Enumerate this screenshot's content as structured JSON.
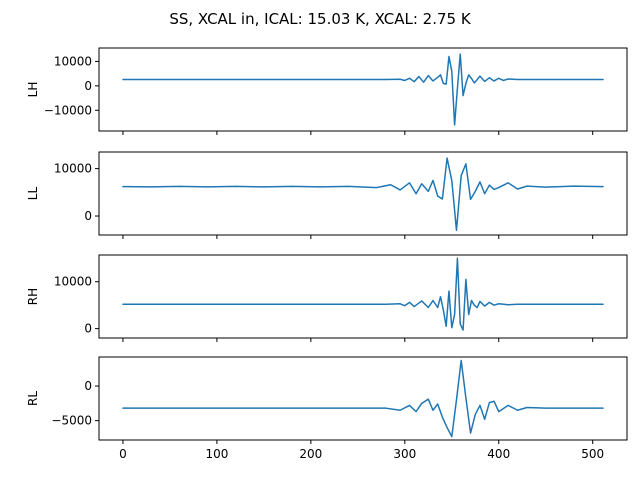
{
  "title": "SS, XCAL in, ICAL: 15.03 K, XCAL: 2.75 K",
  "colors": {
    "line": "#1f77b4",
    "frame": "#000000",
    "background": "#ffffff"
  },
  "chart_data": [
    {
      "type": "line",
      "ylabel": "LH",
      "xlim": [
        -25.5,
        536.5
      ],
      "ylim": [
        -18500,
        15500
      ],
      "yticks": [
        -10000,
        0,
        10000
      ],
      "ytick_labels": [
        "−10000",
        "0",
        "10000"
      ],
      "xticks": [
        0,
        100,
        200,
        300,
        400,
        500
      ],
      "xtick_labels": [
        "",
        "",
        "",
        "",
        "",
        ""
      ],
      "grid": false,
      "x": [
        0,
        50,
        100,
        150,
        200,
        250,
        280,
        295,
        300,
        305,
        310,
        315,
        320,
        325,
        330,
        335,
        338,
        341,
        344,
        347,
        350,
        353,
        356,
        359,
        362,
        365,
        368,
        371,
        374,
        377,
        380,
        385,
        390,
        395,
        400,
        405,
        410,
        420,
        430,
        450,
        500,
        511
      ],
      "y": [
        2600,
        2600,
        2600,
        2600,
        2600,
        2600,
        2600,
        2700,
        2200,
        3100,
        1700,
        3800,
        1500,
        4200,
        2000,
        3500,
        4500,
        1000,
        700,
        12000,
        6000,
        -16000,
        -1000,
        13000,
        -4000,
        1000,
        4500,
        3000,
        1200,
        2500,
        4000,
        1800,
        3300,
        2000,
        3100,
        2200,
        2800,
        2600,
        2600,
        2600,
        2600,
        2600
      ]
    },
    {
      "type": "line",
      "ylabel": "LL",
      "xlim": [
        -25.5,
        536.5
      ],
      "ylim": [
        -4000,
        13500
      ],
      "yticks": [
        0,
        10000
      ],
      "ytick_labels": [
        "0",
        "10000"
      ],
      "xticks": [
        0,
        100,
        200,
        300,
        400,
        500
      ],
      "xtick_labels": [
        "",
        "",
        "",
        "",
        "",
        ""
      ],
      "grid": false,
      "x": [
        0,
        30,
        60,
        90,
        120,
        150,
        180,
        210,
        240,
        270,
        285,
        295,
        305,
        312,
        318,
        325,
        330,
        335,
        340,
        345,
        350,
        355,
        360,
        365,
        370,
        375,
        380,
        385,
        390,
        395,
        400,
        410,
        420,
        430,
        450,
        480,
        511
      ],
      "y": [
        6200,
        6150,
        6250,
        6150,
        6250,
        6150,
        6250,
        6150,
        6250,
        6000,
        6600,
        5500,
        7000,
        4700,
        6800,
        5200,
        7500,
        4200,
        3600,
        12200,
        7500,
        -3000,
        8500,
        11000,
        3500,
        5200,
        7200,
        4700,
        6500,
        5600,
        6000,
        7000,
        5700,
        6300,
        6100,
        6300,
        6200
      ]
    },
    {
      "type": "line",
      "ylabel": "RH",
      "xlim": [
        -25.5,
        536.5
      ],
      "ylim": [
        -2000,
        15700
      ],
      "yticks": [
        0,
        10000
      ],
      "ytick_labels": [
        "0",
        "10000"
      ],
      "xticks": [
        0,
        100,
        200,
        300,
        400,
        500
      ],
      "xtick_labels": [
        "",
        "",
        "",
        "",
        "",
        ""
      ],
      "grid": false,
      "x": [
        0,
        50,
        100,
        150,
        200,
        250,
        280,
        295,
        300,
        305,
        310,
        318,
        325,
        330,
        335,
        338,
        341,
        344,
        347,
        350,
        353,
        356,
        359,
        362,
        365,
        368,
        371,
        374,
        377,
        380,
        385,
        390,
        395,
        400,
        410,
        420,
        450,
        511
      ],
      "y": [
        5200,
        5200,
        5200,
        5200,
        5200,
        5200,
        5200,
        5300,
        4900,
        5600,
        4700,
        5900,
        4500,
        6000,
        4500,
        6800,
        4000,
        500,
        8000,
        200,
        3000,
        15000,
        1000,
        -300,
        10500,
        3000,
        6000,
        5000,
        4500,
        5800,
        4800,
        5600,
        5000,
        5300,
        5100,
        5200,
        5200,
        5200
      ]
    },
    {
      "type": "line",
      "ylabel": "RL",
      "xlim": [
        -25.5,
        536.5
      ],
      "ylim": [
        -7800,
        4200
      ],
      "yticks": [
        -5000,
        0
      ],
      "ytick_labels": [
        "−5000",
        "0"
      ],
      "xticks": [
        0,
        100,
        200,
        300,
        400,
        500
      ],
      "xtick_labels": [
        "0",
        "100",
        "200",
        "300",
        "400",
        "500"
      ],
      "grid": false,
      "x": [
        0,
        50,
        100,
        150,
        200,
        250,
        280,
        295,
        305,
        312,
        318,
        325,
        330,
        335,
        340,
        345,
        350,
        355,
        360,
        365,
        370,
        375,
        380,
        385,
        390,
        395,
        400,
        410,
        420,
        430,
        450,
        480,
        511
      ],
      "y": [
        -3200,
        -3200,
        -3200,
        -3200,
        -3200,
        -3200,
        -3200,
        -3500,
        -2800,
        -3700,
        -2500,
        -1900,
        -3500,
        -2600,
        -4500,
        -6000,
        -7300,
        -2000,
        3700,
        -1700,
        -6800,
        -4100,
        -2800,
        -4800,
        -2400,
        -2200,
        -3700,
        -2800,
        -3500,
        -3100,
        -3200,
        -3200,
        -3200
      ]
    }
  ]
}
